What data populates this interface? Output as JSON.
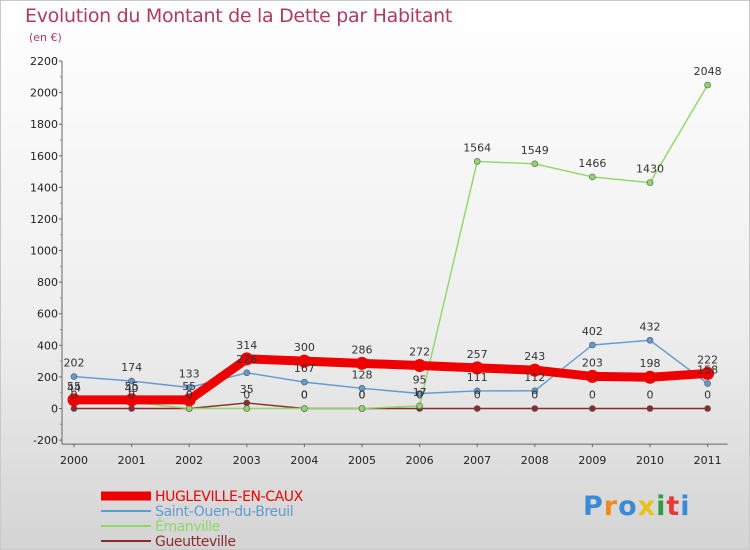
{
  "chart_data": {
    "type": "line",
    "title": "Evolution du Montant de la Dette par Habitant",
    "subtitle": "(en €)",
    "xlabel": "",
    "ylabel": "",
    "categories": [
      "2000",
      "2001",
      "2002",
      "2003",
      "2004",
      "2005",
      "2006",
      "2007",
      "2008",
      "2009",
      "2010",
      "2011"
    ],
    "ylim": [
      -200,
      2200
    ],
    "yticks": [
      "-200",
      "0",
      "200",
      "400",
      "600",
      "800",
      "1000",
      "1200",
      "1400",
      "1600",
      "1800",
      "2000",
      "2200"
    ],
    "grid": false,
    "legend_position": "bottom-left",
    "series": [
      {
        "name": "HUGLEVILLE-EN-CAUX",
        "color": "#ee0000",
        "values": [
          55,
          55,
          55,
          314,
          300,
          286,
          272,
          257,
          243,
          203,
          198,
          222
        ],
        "labels": [
          "55",
          "55",
          "55",
          "314",
          "300",
          "286",
          "272",
          "257",
          "243",
          "203",
          "198",
          "222"
        ]
      },
      {
        "name": "Saint-Ouen-du-Breuil",
        "color": "#5f9bd1",
        "values": [
          202,
          174,
          133,
          226,
          167,
          128,
          95,
          111,
          112,
          402,
          432,
          158
        ],
        "labels": [
          "202",
          "174",
          "133",
          "226",
          "167",
          "128",
          "95",
          "111",
          "112",
          "402",
          "432",
          "158"
        ]
      },
      {
        "name": "Émanville",
        "color": "#8fd867",
        "values": [
          44,
          40,
          0,
          0,
          0,
          0,
          17,
          1564,
          1549,
          1466,
          1430,
          2048
        ],
        "labels": [
          "44",
          "40",
          "0",
          "0",
          "0",
          "0",
          "17",
          "1564",
          "1549",
          "1466",
          "1430",
          "2048"
        ]
      },
      {
        "name": "Gueutteville",
        "color": "#8a2c2c",
        "values": [
          0,
          0,
          0,
          35,
          0,
          0,
          0,
          0,
          0,
          0,
          0,
          0
        ],
        "labels": [
          "0",
          "0",
          "0",
          "35",
          "0",
          "0",
          "0",
          "0",
          "0",
          "0",
          "0",
          "0"
        ]
      }
    ]
  },
  "branding": {
    "logo_text": "Proxiti",
    "logo_colors": [
      "#3b8ad8",
      "#f08a1e",
      "#3b8ad8",
      "#e8c21c",
      "#2c9e3c",
      "#e63b3b",
      "#3b8ad8"
    ]
  }
}
